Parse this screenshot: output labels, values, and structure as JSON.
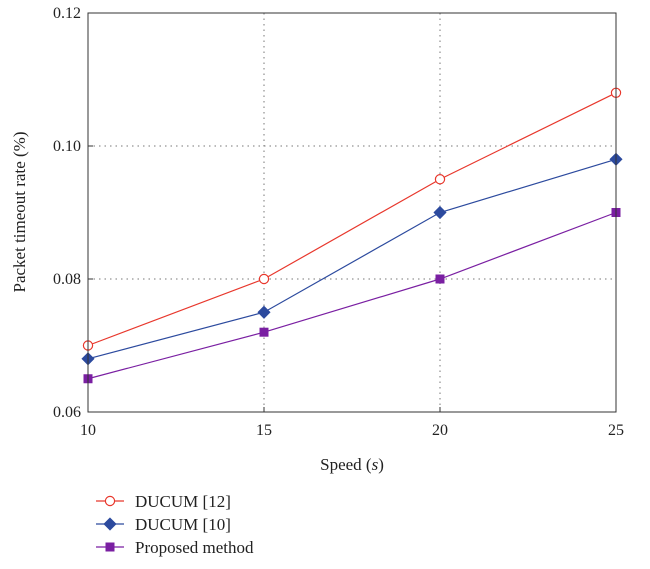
{
  "chart_data": {
    "type": "line",
    "x": [
      10,
      15,
      20,
      25
    ],
    "xlabel_main": "Speed (",
    "xlabel_var": "s",
    "xlabel_close": ")",
    "ylabel": "Packet timeout rate (%)",
    "xlim": [
      10,
      25
    ],
    "ylim": [
      0.06,
      0.12
    ],
    "xticks": [
      10,
      15,
      20,
      25
    ],
    "yticks": [
      0.06,
      0.08,
      0.1,
      0.12
    ],
    "xtick_labels": [
      "10",
      "15",
      "20",
      "25"
    ],
    "ytick_labels": [
      "0.06",
      "0.08",
      "0.10",
      "0.12"
    ],
    "grid": true,
    "legend_position": "bottom-left below plot",
    "series": [
      {
        "name": "DUCUM [12]",
        "values": [
          0.07,
          0.08,
          0.095,
          0.108
        ],
        "color": "#e8372c",
        "marker": "circle-open"
      },
      {
        "name": "DUCUM [10]",
        "values": [
          0.068,
          0.075,
          0.09,
          0.098
        ],
        "color": "#2c4a9e",
        "marker": "diamond"
      },
      {
        "name": "Proposed method",
        "values": [
          0.065,
          0.072,
          0.08,
          0.09
        ],
        "color": "#7a1fa2",
        "marker": "square"
      }
    ]
  }
}
